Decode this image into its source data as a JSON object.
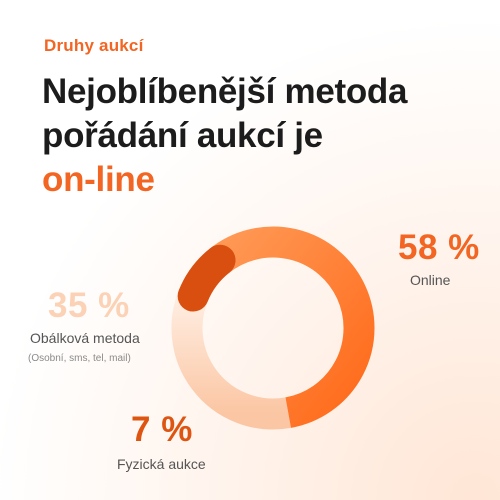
{
  "header": {
    "eyebrow": "Druhy aukcí",
    "title_line1": "Nejoblíbenější metoda",
    "title_line2": "pořádání aukcí je",
    "title_accent": "on-line"
  },
  "labels": {
    "online_pct": "58 %",
    "online_label": "Online",
    "obalkova_pct": "35 %",
    "obalkova_label": "Obálková metoda",
    "obalkova_sub": "(Osobní, sms, tel, mail)",
    "fyzicka_pct": "7 %",
    "fyzicka_label": "Fyzická aukce"
  },
  "chart_data": {
    "type": "pie",
    "variant": "donut",
    "title": "",
    "unit": "%",
    "categories": [
      "Online",
      "Obálková metoda",
      "Fyzická aukce"
    ],
    "values": [
      58,
      35,
      7
    ],
    "colors": [
      "#ff7a2c",
      "#fdd2b4",
      "#d84f10"
    ]
  }
}
